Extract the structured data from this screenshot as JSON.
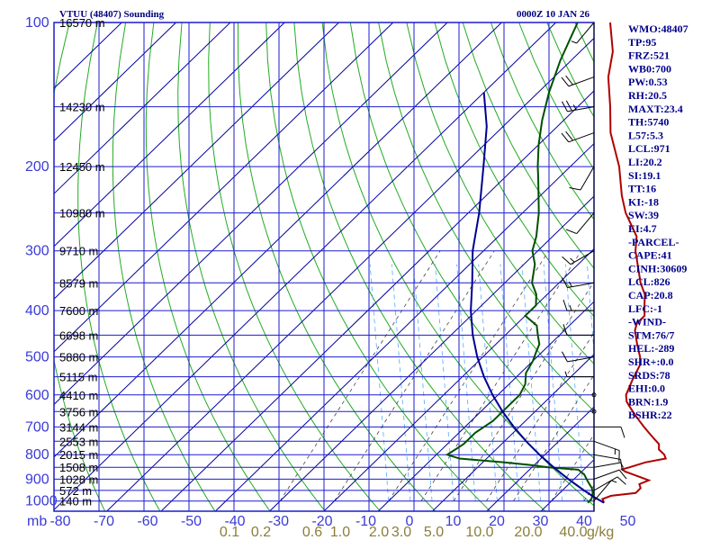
{
  "header": {
    "station": "VTUU (48407) Sounding",
    "time": "0000Z 10 JAN 26"
  },
  "chart_data": {
    "type": "line",
    "title": "VTUU (48407) Sounding",
    "xlabel": "",
    "ylabel": "mb",
    "x_ticks": [
      "-80",
      "-70",
      "-60",
      "-50",
      "-40",
      "-30",
      "-20",
      "-10",
      "0",
      "10",
      "20",
      "30",
      "40",
      "50"
    ],
    "y_ticks": [
      "100",
      "200",
      "300",
      "400",
      "500",
      "600",
      "700",
      "800",
      "900",
      "1000"
    ],
    "y_unit": "mb",
    "mixing_ratio_labels": [
      "0.1",
      "0.2",
      "0.6",
      "1.0",
      "2.0",
      "3.0",
      "5.0",
      "10.0",
      "20.0",
      "40.0"
    ],
    "mixing_ratio_unit": "g/kg",
    "height_labels": [
      {
        "p": 100,
        "text": "16570 m"
      },
      {
        "p": 150,
        "text": "14230 m"
      },
      {
        "p": 200,
        "text": "12450 m"
      },
      {
        "p": 250,
        "text": "10980 m"
      },
      {
        "p": 300,
        "text": "9710 m"
      },
      {
        "p": 350,
        "text": "8579 m"
      },
      {
        "p": 400,
        "text": "7600 m"
      },
      {
        "p": 450,
        "text": "6698 m"
      },
      {
        "p": 500,
        "text": "5880 m"
      },
      {
        "p": 550,
        "text": "5115 m"
      },
      {
        "p": 600,
        "text": "4410 m"
      },
      {
        "p": 650,
        "text": "3756 m"
      },
      {
        "p": 700,
        "text": "3144 m"
      },
      {
        "p": 750,
        "text": "2553 m"
      },
      {
        "p": 800,
        "text": "2015 m"
      },
      {
        "p": 850,
        "text": "1508 m"
      },
      {
        "p": 900,
        "text": "1028 m"
      },
      {
        "p": 950,
        "text": "572 m"
      },
      {
        "p": 1000,
        "text": "140 m"
      }
    ],
    "series": [
      {
        "color": "#b00000",
        "points": [
          [
            1008,
            20
          ],
          [
            990,
            19
          ],
          [
            975,
            20
          ],
          [
            962,
            24
          ],
          [
            940,
            24
          ],
          [
            922,
            23
          ],
          [
            905,
            24
          ],
          [
            880,
            20
          ],
          [
            868,
            18
          ],
          [
            858,
            17
          ],
          [
            850,
            18
          ],
          [
            830,
            20
          ],
          [
            815,
            23
          ],
          [
            800,
            22
          ],
          [
            780,
            20
          ],
          [
            760,
            19
          ],
          [
            740,
            17
          ],
          [
            720,
            15
          ],
          [
            700,
            13
          ],
          [
            680,
            11
          ],
          [
            660,
            9
          ],
          [
            640,
            7
          ],
          [
            620,
            5
          ],
          [
            600,
            3.6
          ],
          [
            560,
            2
          ],
          [
            520,
            0.5
          ],
          [
            500,
            -1
          ],
          [
            470,
            -4
          ],
          [
            440,
            -7
          ],
          [
            425,
            -8
          ],
          [
            410,
            -8
          ],
          [
            390,
            -10
          ],
          [
            370,
            -12
          ],
          [
            350,
            -15
          ],
          [
            300,
            -22
          ],
          [
            280,
            -24.5
          ],
          [
            250,
            -31
          ],
          [
            230,
            -35
          ],
          [
            200,
            -41
          ],
          [
            170,
            -49
          ],
          [
            150,
            -54
          ],
          [
            130,
            -60
          ],
          [
            115,
            -64
          ],
          [
            100,
            -70
          ]
        ]
      },
      {
        "color": "#005000",
        "points": [
          [
            1008,
            17
          ],
          [
            990,
            17
          ],
          [
            960,
            16
          ],
          [
            940,
            15
          ],
          [
            910,
            13
          ],
          [
            880,
            11
          ],
          [
            860,
            9
          ],
          [
            850,
            3
          ],
          [
            840,
            -1
          ],
          [
            830,
            -6
          ],
          [
            815,
            -15
          ],
          [
            800,
            -18
          ],
          [
            760,
            -17
          ],
          [
            720,
            -17
          ],
          [
            680,
            -16
          ],
          [
            640,
            -16
          ],
          [
            600,
            -16
          ],
          [
            570,
            -17
          ],
          [
            540,
            -19
          ],
          [
            510,
            -20
          ],
          [
            490,
            -21
          ],
          [
            470,
            -22
          ],
          [
            450,
            -24
          ],
          [
            430,
            -26
          ],
          [
            410,
            -30
          ],
          [
            390,
            -30
          ],
          [
            370,
            -32
          ],
          [
            350,
            -35
          ],
          [
            320,
            -38
          ],
          [
            300,
            -41
          ],
          [
            280,
            -43
          ],
          [
            250,
            -47
          ],
          [
            210,
            -54
          ],
          [
            200,
            -56
          ],
          [
            180,
            -60
          ],
          [
            160,
            -64
          ],
          [
            140,
            -68
          ],
          [
            120,
            -72
          ],
          [
            100,
            -76
          ]
        ]
      },
      {
        "color": "#000090",
        "points": [
          [
            1008,
            20
          ],
          [
            980,
            17
          ],
          [
            950,
            14
          ],
          [
            920,
            11
          ],
          [
            900,
            9
          ],
          [
            880,
            7
          ],
          [
            850,
            4
          ],
          [
            800,
            -1
          ],
          [
            750,
            -6
          ],
          [
            700,
            -11
          ],
          [
            650,
            -16
          ],
          [
            600,
            -21
          ],
          [
            550,
            -26
          ],
          [
            500,
            -31
          ],
          [
            450,
            -36
          ],
          [
            400,
            -41
          ],
          [
            350,
            -46
          ],
          [
            300,
            -52
          ],
          [
            250,
            -58
          ],
          [
            200,
            -66
          ],
          [
            165,
            -73
          ],
          [
            140,
            -80
          ]
        ]
      }
    ],
    "winds": [
      {
        "p": 1000,
        "dir": 40,
        "spd": 5
      },
      {
        "p": 950,
        "dir": 60,
        "spd": 10
      },
      {
        "p": 900,
        "dir": 70,
        "spd": 10
      },
      {
        "p": 850,
        "dir": 80,
        "spd": 5
      },
      {
        "p": 800,
        "dir": 100,
        "spd": 10
      },
      {
        "p": 750,
        "dir": 110,
        "spd": 15
      },
      {
        "p": 700,
        "dir": 90,
        "spd": 10
      },
      {
        "p": 650,
        "dir": 0,
        "spd": 0
      },
      {
        "p": 600,
        "dir": 0,
        "spd": 0
      },
      {
        "p": 550,
        "dir": 270,
        "spd": 5
      },
      {
        "p": 500,
        "dir": 260,
        "spd": 10
      },
      {
        "p": 450,
        "dir": 270,
        "spd": 10
      },
      {
        "p": 400,
        "dir": 270,
        "spd": 15
      },
      {
        "p": 350,
        "dir": 260,
        "spd": 15
      },
      {
        "p": 300,
        "dir": 240,
        "spd": 15
      },
      {
        "p": 250,
        "dir": 220,
        "spd": 10
      },
      {
        "p": 200,
        "dir": 210,
        "spd": 10
      },
      {
        "p": 170,
        "dir": 250,
        "spd": 20
      },
      {
        "p": 150,
        "dir": 260,
        "spd": 25
      },
      {
        "p": 130,
        "dir": 250,
        "spd": 20
      },
      {
        "p": 100,
        "dir": 220,
        "spd": 5
      }
    ],
    "grid": true
  },
  "indices": [
    "WMO:48407",
    "TP:95",
    "FRZ:521",
    "WB0:700",
    "PW:0.53",
    "RH:20.5",
    "MAXT:23.4",
    "TH:5740",
    "L57:5.3",
    "LCL:971",
    "LI:20.2",
    "SI:19.1",
    "TT:16",
    "KI:-18",
    "SW:39",
    "EI:4.7",
    "-PARCEL-",
    "CAPE:41",
    "CINH:30609",
    "LCL:826",
    "CAP:20.8",
    "LFC:-1",
    "-WIND-",
    "STM:76/7",
    "HEL:-289",
    "SHR+:0.0",
    "SRDS:78",
    "EHI:0.0",
    "BRN:1.9",
    "BSHR:22"
  ]
}
